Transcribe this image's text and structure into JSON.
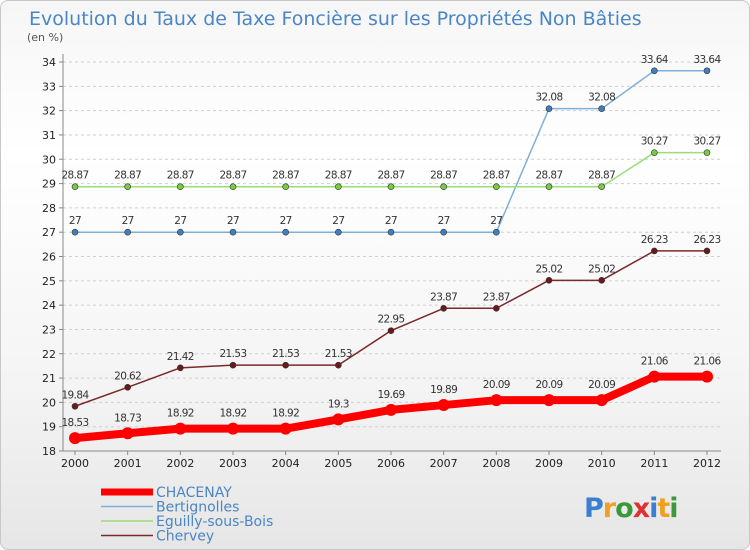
{
  "title": "Evolution du Taux de Taxe Foncière sur les Propriétés Non Bâties",
  "subtitle": "(en %)",
  "logo_text": "Proxiti",
  "colors": {
    "title": "#4a86c5",
    "axis": "#888888",
    "grid": "#cfcfcf"
  },
  "chart_data": {
    "type": "line",
    "title": "Evolution du Taux de Taxe Foncière sur les Propriétés Non Bâties",
    "subtitle": "(en %)",
    "x": [
      "2000",
      "2001",
      "2002",
      "2003",
      "2004",
      "2005",
      "2006",
      "2007",
      "2008",
      "2009",
      "2010",
      "2011",
      "2012"
    ],
    "ylim": [
      18,
      34
    ],
    "yticks": [
      18,
      19,
      20,
      21,
      22,
      23,
      24,
      25,
      26,
      27,
      28,
      29,
      30,
      31,
      32,
      33,
      34
    ],
    "grid": "horizontal dashed",
    "legend_position": "bottom-left",
    "series": [
      {
        "name": "CHACENAY",
        "color": "#ff0000",
        "emphasis": "thick",
        "values": [
          18.53,
          18.73,
          18.92,
          18.92,
          18.92,
          19.3,
          19.69,
          19.89,
          20.09,
          20.09,
          20.09,
          21.06,
          21.06
        ],
        "labels": [
          "18.53",
          "18.73",
          "18.92",
          "18.92",
          "18.92",
          "19.3",
          "19.69",
          "19.89",
          "20.09",
          "20.09",
          "20.09",
          "21.06",
          "21.06"
        ]
      },
      {
        "name": "Bertignolles",
        "color": "#7fb0d8",
        "marker": "#3f7fbf",
        "values": [
          27,
          27,
          27,
          27,
          27,
          27,
          27,
          27,
          27,
          32.08,
          32.08,
          33.64,
          33.64
        ],
        "labels": [
          "27",
          "27",
          "27",
          "27",
          "27",
          "27",
          "27",
          "27",
          "27",
          "32.08",
          "32.08",
          "33.64",
          "33.64"
        ]
      },
      {
        "name": "Eguilly-sous-Bois",
        "color": "#99dd77",
        "marker": "#77cc44",
        "values": [
          28.87,
          28.87,
          28.87,
          28.87,
          28.87,
          28.87,
          28.87,
          28.87,
          28.87,
          28.87,
          28.87,
          30.27,
          30.27
        ],
        "labels": [
          "28.87",
          "28.87",
          "28.87",
          "28.87",
          "28.87",
          "28.87",
          "28.87",
          "28.87",
          "28.87",
          "28.87",
          "28.87",
          "30.27",
          "30.27"
        ]
      },
      {
        "name": "Chervey",
        "color": "#7a2a2a",
        "marker": "#6a1a1a",
        "values": [
          19.84,
          20.62,
          21.42,
          21.53,
          21.53,
          21.53,
          22.95,
          23.87,
          23.87,
          25.02,
          25.02,
          26.23,
          26.23
        ],
        "labels": [
          "19.84",
          "20.62",
          "21.42",
          "21.53",
          "21.53",
          "21.53",
          "22.95",
          "23.87",
          "23.87",
          "25.02",
          "25.02",
          "26.23",
          "26.23"
        ]
      }
    ]
  }
}
